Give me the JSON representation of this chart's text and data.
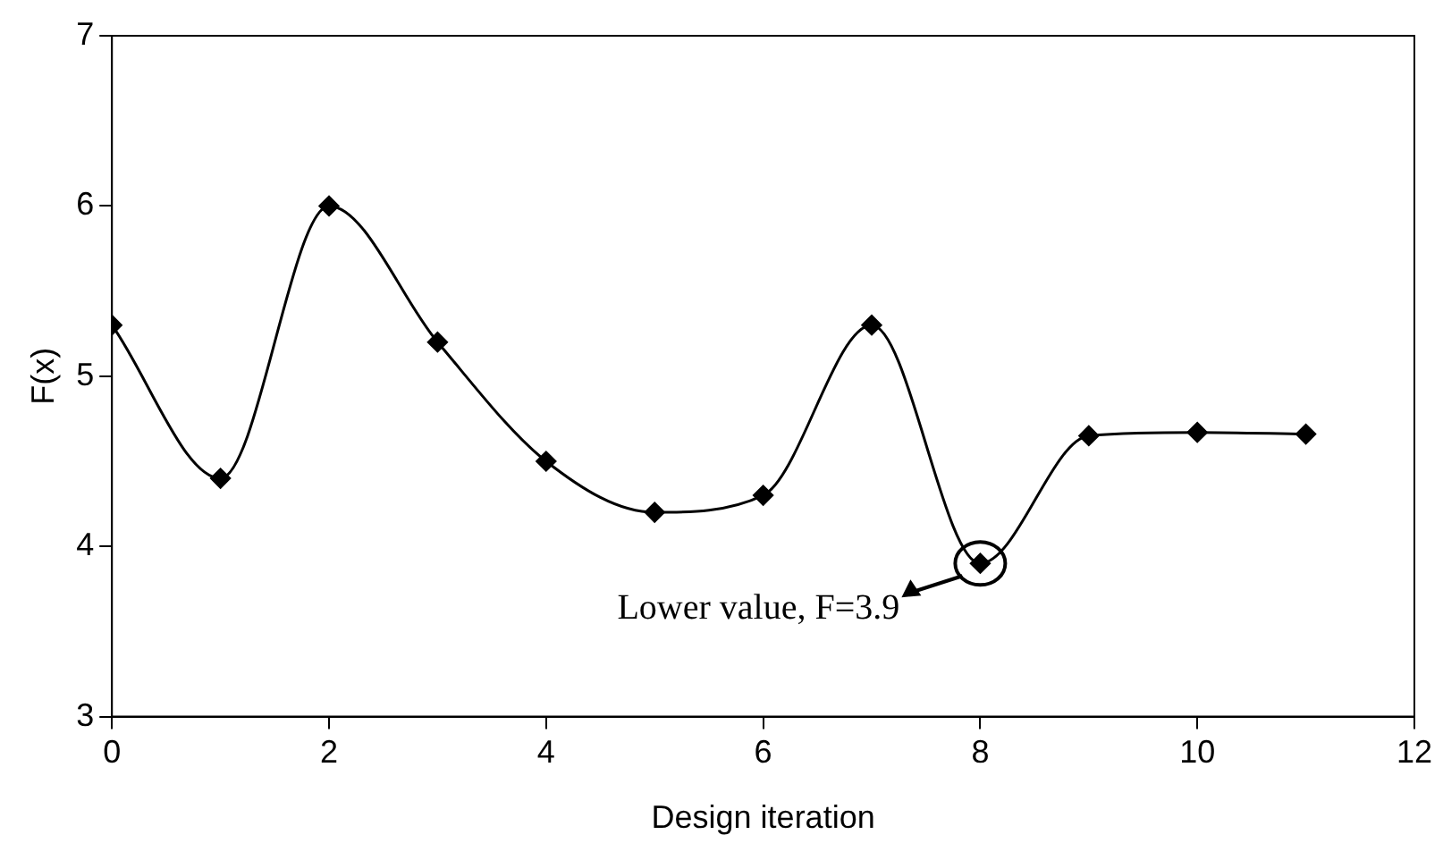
{
  "chart_data": {
    "type": "line",
    "xlabel": "Design iteration",
    "ylabel": "F(x)",
    "x": [
      0,
      1,
      2,
      3,
      4,
      5,
      6,
      7,
      8,
      9,
      10,
      11
    ],
    "series": [
      {
        "color": "#000000",
        "values": [
          5.3,
          4.4,
          6.0,
          5.2,
          4.5,
          4.2,
          4.3,
          5.3,
          3.9,
          4.65,
          4.67,
          4.66
        ]
      }
    ],
    "xlim": [
      0,
      12
    ],
    "xticks": [
      0,
      2,
      4,
      6,
      8,
      10,
      12
    ],
    "ylim": [
      3,
      7
    ],
    "yticks": [
      3,
      4,
      5,
      6,
      7
    ],
    "grid": false,
    "legend": false,
    "marker": "diamond",
    "line_style": "solid",
    "annotations": [
      {
        "text": "Lower value, F=3.9",
        "x": 8,
        "y": 3.9
      }
    ]
  }
}
